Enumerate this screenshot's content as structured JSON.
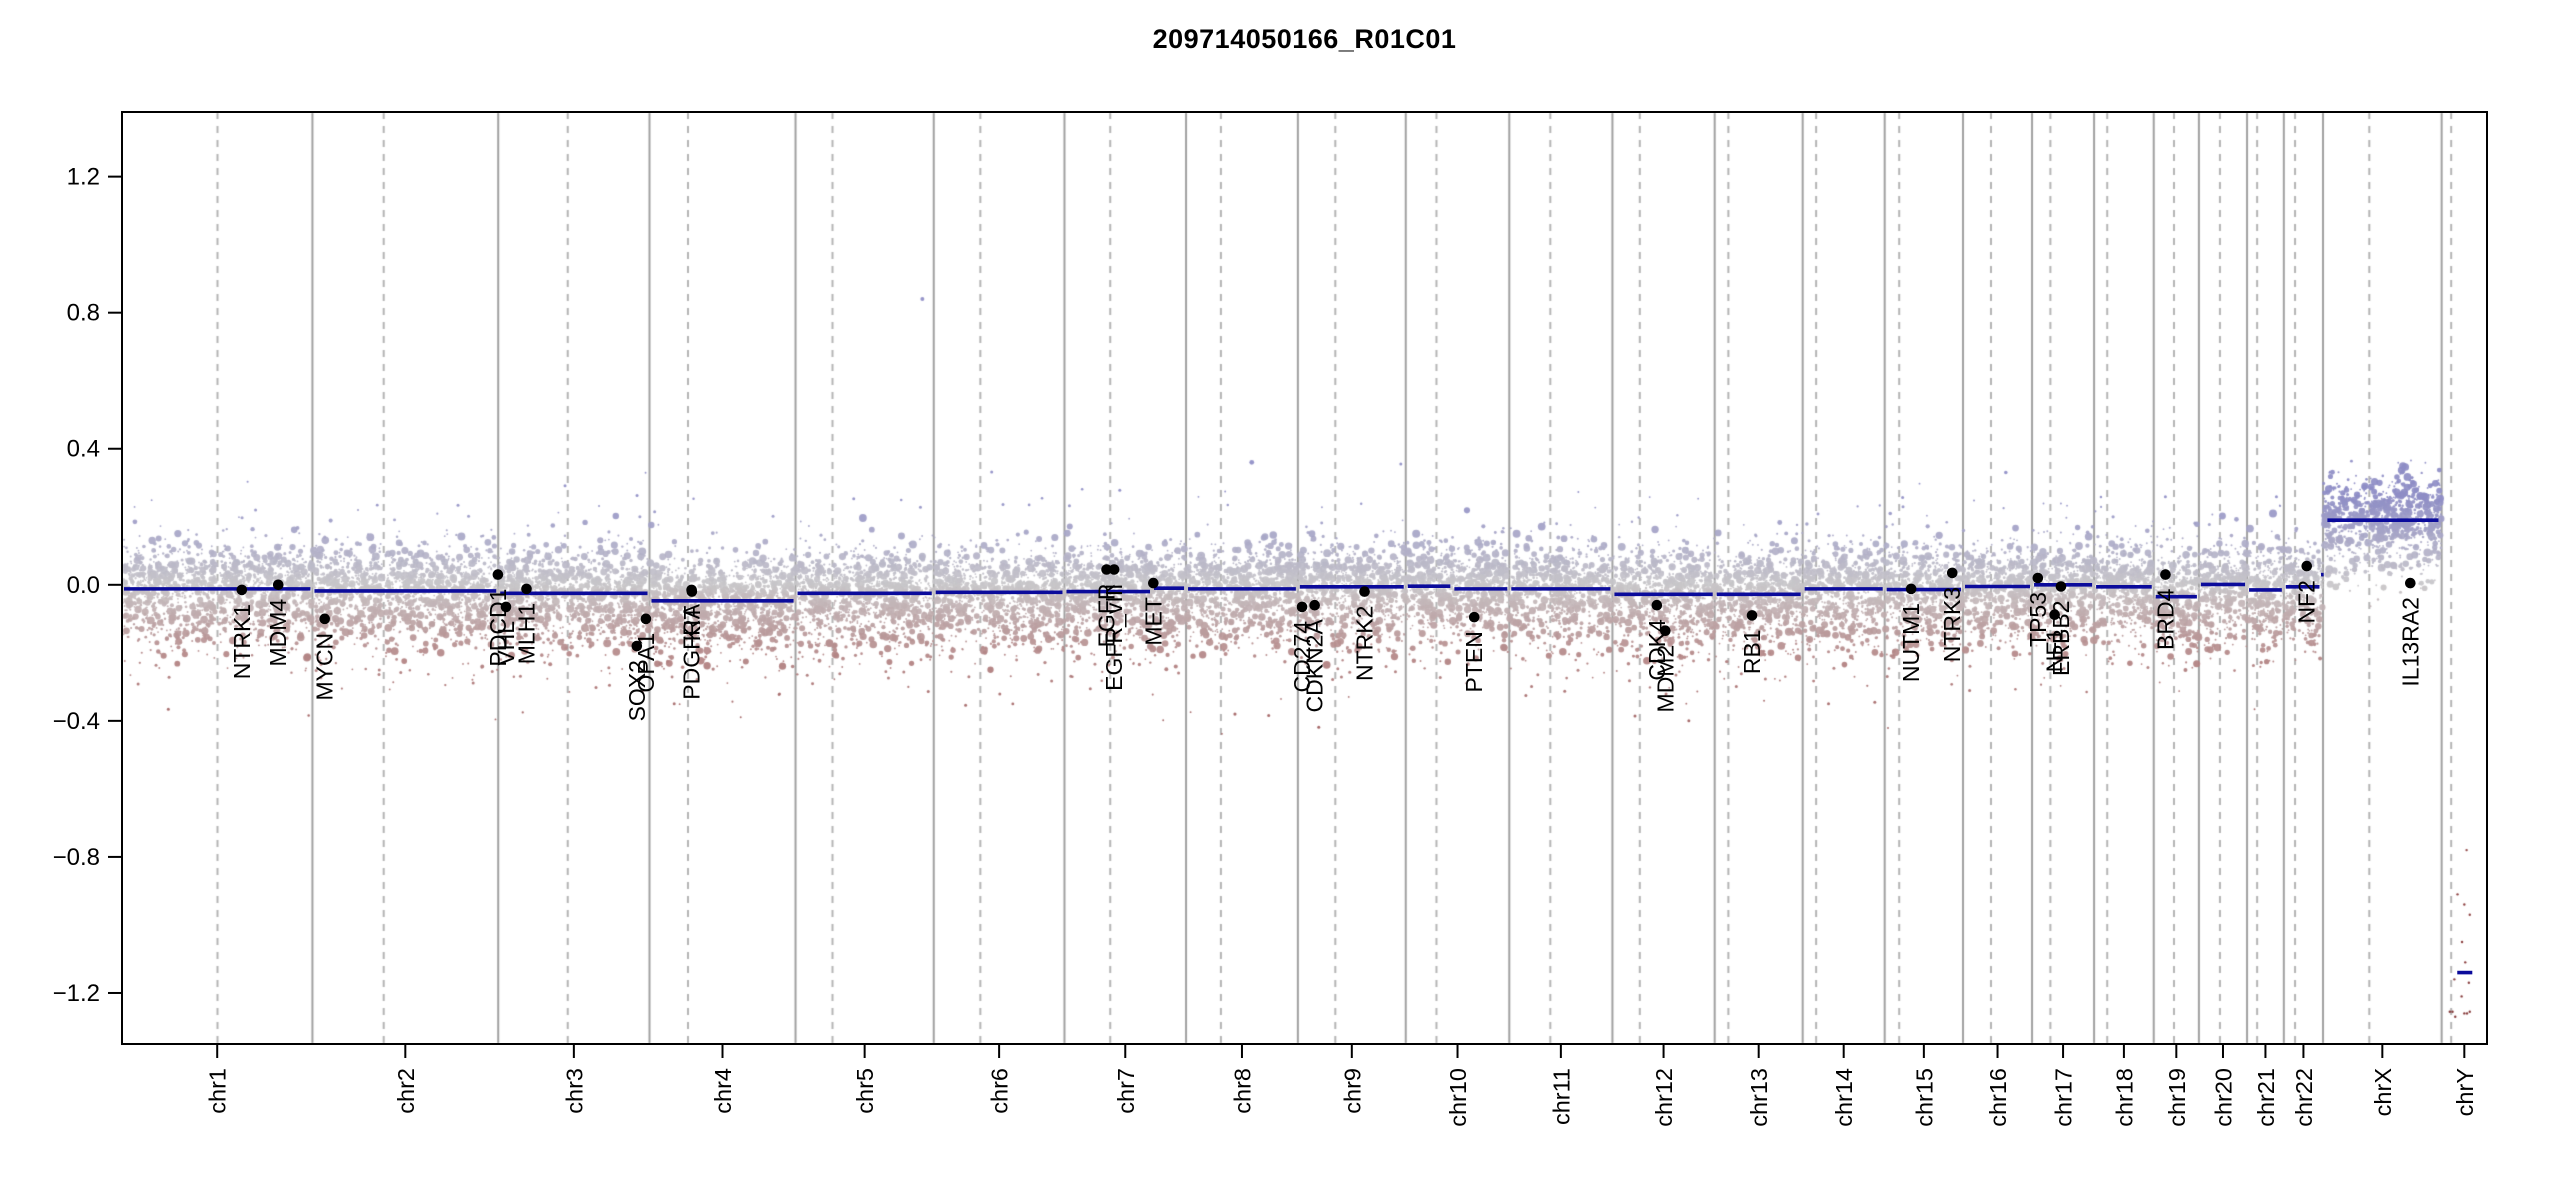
{
  "title": "209714050166_R01C01",
  "chart_data": {
    "type": "scatter",
    "title": "209714050166_R01C01",
    "subtitle": "",
    "xlabel": "",
    "ylabel": "",
    "ylim": [
      -1.35,
      1.39
    ],
    "grid": "vertical only: solid lines at chromosome boundaries, dashed lines at centromeres",
    "legend": "none",
    "y_ticks": [
      {
        "v": 1.2,
        "label": "1.2"
      },
      {
        "v": 0.8,
        "label": "0.8"
      },
      {
        "v": 0.4,
        "label": "0.4"
      },
      {
        "v": 0.0,
        "label": "0.0"
      },
      {
        "v": -0.4,
        "label": "−0.4"
      },
      {
        "v": -0.8,
        "label": "−0.8"
      },
      {
        "v": -1.2,
        "label": "−1.2"
      }
    ],
    "chromosomes": [
      {
        "label": "chr1",
        "length_mb": 249.25,
        "centromere_mb": 125.0,
        "segments": [
          [
            0,
            1,
            -0.012
          ]
        ]
      },
      {
        "label": "chr2",
        "length_mb": 243.2,
        "centromere_mb": 93.3,
        "segments": [
          [
            0,
            1,
            -0.018
          ]
        ]
      },
      {
        "label": "chr3",
        "length_mb": 198.02,
        "centromere_mb": 91.0,
        "segments": [
          [
            0,
            1,
            -0.025
          ]
        ]
      },
      {
        "label": "chr4",
        "length_mb": 191.15,
        "centromere_mb": 50.4,
        "segments": [
          [
            0,
            1,
            -0.047
          ]
        ]
      },
      {
        "label": "chr5",
        "length_mb": 180.92,
        "centromere_mb": 48.4,
        "segments": [
          [
            0,
            1,
            -0.025
          ]
        ]
      },
      {
        "label": "chr6",
        "length_mb": 171.12,
        "centromere_mb": 61.0,
        "segments": [
          [
            0,
            1,
            -0.022
          ]
        ]
      },
      {
        "label": "chr7",
        "length_mb": 159.14,
        "centromere_mb": 59.9,
        "segments": [
          [
            0,
            0.72,
            -0.02
          ],
          [
            0.72,
            1,
            -0.01
          ]
        ]
      },
      {
        "label": "chr8",
        "length_mb": 146.36,
        "centromere_mb": 45.6,
        "segments": [
          [
            0,
            1,
            -0.012
          ]
        ]
      },
      {
        "label": "chr9",
        "length_mb": 141.21,
        "centromere_mb": 49.0,
        "segments": [
          [
            0,
            1,
            -0.006
          ]
        ]
      },
      {
        "label": "chr10",
        "length_mb": 135.53,
        "centromere_mb": 40.2,
        "segments": [
          [
            0,
            0.45,
            -0.004
          ],
          [
            0.45,
            1,
            -0.012
          ]
        ]
      },
      {
        "label": "chr11",
        "length_mb": 135.01,
        "centromere_mb": 53.7,
        "segments": [
          [
            0,
            1,
            -0.012
          ]
        ]
      },
      {
        "label": "chr12",
        "length_mb": 133.85,
        "centromere_mb": 35.8,
        "segments": [
          [
            0,
            1,
            -0.028
          ]
        ]
      },
      {
        "label": "chr13",
        "length_mb": 115.17,
        "centromere_mb": 17.9,
        "segments": [
          [
            0,
            1,
            -0.028
          ]
        ]
      },
      {
        "label": "chr14",
        "length_mb": 107.35,
        "centromere_mb": 17.6,
        "segments": [
          [
            0,
            1,
            -0.012
          ]
        ]
      },
      {
        "label": "chr15",
        "length_mb": 102.53,
        "centromere_mb": 19.0,
        "segments": [
          [
            0,
            1,
            -0.014
          ]
        ]
      },
      {
        "label": "chr16",
        "length_mb": 90.35,
        "centromere_mb": 36.6,
        "segments": [
          [
            0,
            1,
            -0.005
          ]
        ]
      },
      {
        "label": "chr17",
        "length_mb": 81.2,
        "centromere_mb": 24.0,
        "segments": [
          [
            0,
            1,
            0.0
          ]
        ]
      },
      {
        "label": "chr18",
        "length_mb": 78.08,
        "centromere_mb": 17.2,
        "segments": [
          [
            0,
            1,
            -0.006
          ]
        ]
      },
      {
        "label": "chr19",
        "length_mb": 59.13,
        "centromere_mb": 26.5,
        "segments": [
          [
            0,
            1,
            -0.035
          ]
        ]
      },
      {
        "label": "chr20",
        "length_mb": 63.03,
        "centromere_mb": 27.5,
        "segments": [
          [
            0,
            1,
            0.001
          ]
        ]
      },
      {
        "label": "chr21",
        "length_mb": 48.13,
        "centromere_mb": 13.2,
        "segments": [
          [
            0,
            1,
            -0.015
          ]
        ]
      },
      {
        "label": "chr22",
        "length_mb": 51.3,
        "centromere_mb": 14.7,
        "segments": [
          [
            0,
            0.96,
            -0.006
          ],
          [
            0.965,
            1,
            0.03
          ]
        ]
      },
      {
        "label": "chrX",
        "length_mb": 155.27,
        "centromere_mb": 60.6,
        "segments": [
          [
            0.02,
            0.99,
            0.19
          ]
        ],
        "cloud_mixture": [
          {
            "w": 0.82,
            "mean": 0.205,
            "sd": 0.055
          },
          {
            "w": 0.18,
            "mean": 0.075,
            "sd": 0.05
          }
        ]
      },
      {
        "label": "chrY",
        "length_mb": 59.37,
        "centromere_mb": 12.5,
        "segments": [
          [
            0.3,
            0.72,
            -1.14
          ]
        ],
        "no_cloud": true
      }
    ],
    "genes": [
      {
        "name": "NTRK1",
        "chrom": "chr1",
        "pos_mb": 156.85,
        "value": -0.015
      },
      {
        "name": "MDM4",
        "chrom": "chr1",
        "pos_mb": 204.52,
        "value": 0.0
      },
      {
        "name": "MYCN",
        "chrom": "chr2",
        "pos_mb": 16.08,
        "value": -0.1
      },
      {
        "name": "PDCD1",
        "chrom": "chr2",
        "pos_mb": 242.79,
        "value": 0.03
      },
      {
        "name": "VHL",
        "chrom": "chr3",
        "pos_mb": 10.18,
        "value": -0.065
      },
      {
        "name": "MLH1",
        "chrom": "chr3",
        "pos_mb": 37.03,
        "value": -0.012
      },
      {
        "name": "SOX2",
        "chrom": "chr3",
        "pos_mb": 181.43,
        "value": -0.18
      },
      {
        "name": "OPA1",
        "chrom": "chr3",
        "pos_mb": 193.31,
        "value": -0.1
      },
      {
        "name": "PDGFRA",
        "chrom": "chr4",
        "pos_mb": 55.1,
        "value": -0.015
      },
      {
        "name": "KIT",
        "chrom": "chr4",
        "pos_mb": 55.52,
        "value": -0.02
      },
      {
        "name": "EGFR",
        "chrom": "chr7",
        "pos_mb": 55.09,
        "value": 0.045
      },
      {
        "name": "EGFR_vIII",
        "chrom": "chr7",
        "pos_mb": 65.0,
        "value": 0.045
      },
      {
        "name": "MET",
        "chrom": "chr7",
        "pos_mb": 116.31,
        "value": 0.005
      },
      {
        "name": "CD274",
        "chrom": "chr9",
        "pos_mb": 5.45,
        "value": -0.065
      },
      {
        "name": "CDKN2A",
        "chrom": "chr9",
        "pos_mb": 21.97,
        "value": -0.06
      },
      {
        "name": "NTRK2",
        "chrom": "chr9",
        "pos_mb": 87.28,
        "value": -0.02
      },
      {
        "name": "PTEN",
        "chrom": "chr10",
        "pos_mb": 89.62,
        "value": -0.095
      },
      {
        "name": "CDK4",
        "chrom": "chr12",
        "pos_mb": 58.14,
        "value": -0.06
      },
      {
        "name": "MDM2",
        "chrom": "chr12",
        "pos_mb": 69.2,
        "value": -0.135
      },
      {
        "name": "RB1",
        "chrom": "chr13",
        "pos_mb": 48.88,
        "value": -0.09
      },
      {
        "name": "NUTM1",
        "chrom": "chr15",
        "pos_mb": 34.64,
        "value": -0.012
      },
      {
        "name": "NTRK3",
        "chrom": "chr15",
        "pos_mb": 88.42,
        "value": 0.035
      },
      {
        "name": "TP53",
        "chrom": "chr17",
        "pos_mb": 7.57,
        "value": 0.02
      },
      {
        "name": "NF1",
        "chrom": "chr17",
        "pos_mb": 29.55,
        "value": -0.088
      },
      {
        "name": "ERBB2",
        "chrom": "chr17",
        "pos_mb": 37.86,
        "value": -0.005
      },
      {
        "name": "BRD4",
        "chrom": "chr19",
        "pos_mb": 15.35,
        "value": 0.03
      },
      {
        "name": "NF2",
        "chrom": "chr22",
        "pos_mb": 30.0,
        "value": 0.055
      },
      {
        "name": "IL13RA2",
        "chrom": "chrX",
        "pos_mb": 114.25,
        "value": 0.005
      }
    ],
    "extra_outlier_points": [
      {
        "chrom": "chr5",
        "pos_mb": 166,
        "value": 0.84,
        "r": 2.0
      },
      {
        "chrom": "chr8",
        "pos_mb": 86,
        "value": 0.36,
        "r": 2.4
      },
      {
        "chrom": "chr16",
        "pos_mb": 56,
        "value": 0.33,
        "r": 1.8
      },
      {
        "chrom": "chr8",
        "pos_mb": 64,
        "value": -0.38,
        "r": 1.6
      },
      {
        "chrom": "chr12",
        "pos_mb": 100,
        "value": -0.4,
        "r": 1.5
      }
    ],
    "chrY_points": [
      {
        "f": 0.55,
        "v": -0.78
      },
      {
        "f": 0.35,
        "v": -0.91
      },
      {
        "f": 0.5,
        "v": -0.94
      },
      {
        "f": 0.62,
        "v": -0.97
      },
      {
        "f": 0.45,
        "v": -1.05
      },
      {
        "f": 0.52,
        "v": -1.11
      },
      {
        "f": 0.28,
        "v": -1.16
      },
      {
        "f": 0.6,
        "v": -1.17
      },
      {
        "f": 0.44,
        "v": -1.21
      },
      {
        "f": 0.18,
        "v": -1.255
      },
      {
        "f": 0.24,
        "v": -1.255
      },
      {
        "f": 0.5,
        "v": -1.26
      },
      {
        "f": 0.56,
        "v": -1.26
      },
      {
        "f": 0.62,
        "v": -1.255
      },
      {
        "f": 0.3,
        "v": -1.27
      }
    ]
  },
  "style": {
    "background": "#ffffff",
    "frame_color": "#000000",
    "text_color": "#000000",
    "segment_color": "#0b0b9b",
    "boundary_line_color": "#a0a0a0",
    "centromere_line_color": "#b4b4b4",
    "gene_marker_color": "#000000",
    "point_colors": {
      "zero": "#c8c6c9",
      "gain": "#8e8dc6",
      "loss": "#b28282",
      "deep_loss": "#914141",
      "deepest_loss": "#7a2727"
    },
    "points_per_mb": 6,
    "seed": 20240613,
    "point_alpha": 0.92
  }
}
